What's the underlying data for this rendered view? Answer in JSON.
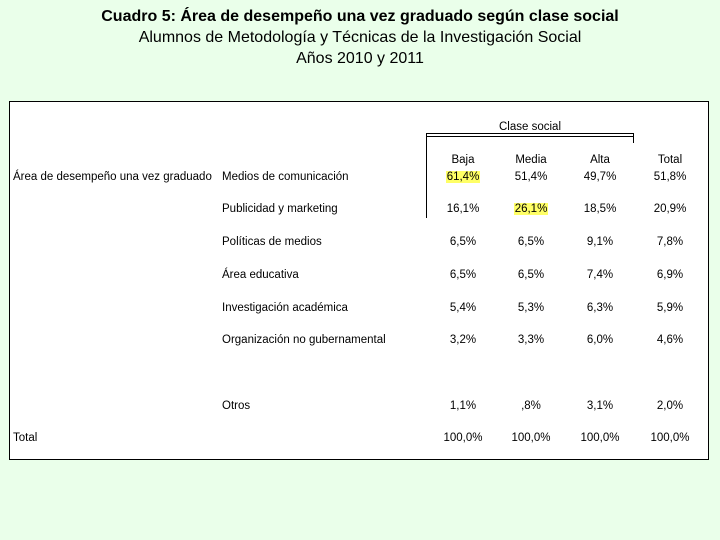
{
  "title": {
    "line1": "Cuadro 5: Área de desempeño una vez graduado según clase social",
    "line2": "Alumnos de Metodología y Técnicas de la Investigación Social",
    "line3": "Años 2010 y 2011"
  },
  "table": {
    "group_header": "Clase social",
    "columns": [
      "Baja",
      "Media",
      "Alta",
      "Total"
    ],
    "row_dimension_label": "Área de desempeño una vez graduado",
    "rows": [
      {
        "label": "Medios de comunicación",
        "values": [
          "61,4%",
          "51,4%",
          "49,7%",
          "51,8%"
        ]
      },
      {
        "label": "Publicidad y marketing",
        "values": [
          "16,1%",
          "26,1%",
          "18,5%",
          "20,9%"
        ]
      },
      {
        "label": "Políticas de medios",
        "values": [
          "6,5%",
          "6,5%",
          "9,1%",
          "7,8%"
        ]
      },
      {
        "label": "Área educativa",
        "values": [
          "6,5%",
          "6,5%",
          "7,4%",
          "6,9%"
        ]
      },
      {
        "label": "Investigación académica",
        "values": [
          "5,4%",
          "5,3%",
          "6,3%",
          "5,9%"
        ]
      },
      {
        "label": "Organización no gubernamental",
        "values": [
          "3,2%",
          "3,3%",
          "6,0%",
          "4,6%"
        ]
      },
      {
        "label": "Otros",
        "values": [
          "1,1%",
          ",8%",
          "3,1%",
          "2,0%"
        ]
      }
    ],
    "total_row": {
      "label": "Total",
      "values": [
        "100,0%",
        "100,0%",
        "100,0%",
        "100,0%"
      ]
    },
    "highlight_color": "#ffff66"
  }
}
